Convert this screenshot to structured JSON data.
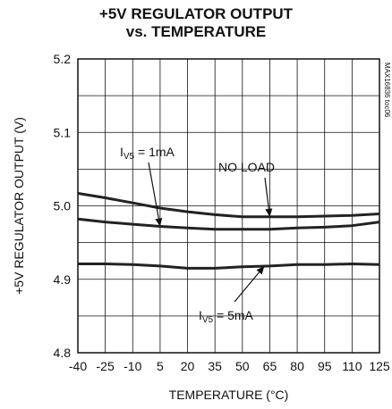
{
  "chart_data": {
    "type": "line",
    "title_line1": "+5V REGULATOR OUTPUT",
    "title_line2": "vs. TEMPERATURE",
    "xlabel": "TEMPERATURE (°C)",
    "ylabel": "+5V REGULATOR OUTPUT (V)",
    "xlim": [
      -40,
      125
    ],
    "ylim": [
      4.8,
      5.2
    ],
    "x_ticks": [
      -40,
      -25,
      -10,
      5,
      20,
      35,
      50,
      65,
      80,
      95,
      110,
      125
    ],
    "y_ticks": [
      "4.8",
      "4.9",
      "5.0",
      "5.1",
      "5.2"
    ],
    "grid": true,
    "watermark": "MAX16836 toc06",
    "series": [
      {
        "name": "NO LOAD",
        "x": [
          -40,
          -25,
          -10,
          5,
          20,
          35,
          50,
          65,
          80,
          95,
          110,
          125
        ],
        "y": [
          5.017,
          5.011,
          5.004,
          4.997,
          4.992,
          4.988,
          4.985,
          4.985,
          4.985,
          4.986,
          4.987,
          4.989
        ]
      },
      {
        "name": "",
        "x": [
          -40,
          -25,
          -10,
          5,
          20,
          35,
          50,
          65,
          80,
          95,
          110,
          125
        ],
        "y": [
          4.982,
          4.978,
          4.975,
          4.972,
          4.97,
          4.968,
          4.968,
          4.968,
          4.97,
          4.971,
          4.973,
          4.978
        ]
      },
      {
        "name": "",
        "x": [
          -40,
          -25,
          -10,
          5,
          20,
          35,
          50,
          65,
          80,
          95,
          110,
          125
        ],
        "y": [
          4.921,
          4.921,
          4.92,
          4.918,
          4.915,
          4.915,
          4.917,
          4.918,
          4.92,
          4.92,
          4.921,
          4.92
        ]
      }
    ],
    "annotations": [
      {
        "main": "I",
        "sub": "V5",
        "suffix": " = 1mA",
        "points_to": {
          "x": 5,
          "y": 4.972
        }
      },
      {
        "main": "NO LOAD",
        "sub": "",
        "suffix": "",
        "points_to": {
          "x": 65,
          "y": 4.985
        }
      },
      {
        "main": "I",
        "sub": "V5",
        "suffix": " = 5mA",
        "points_to": {
          "x": 62,
          "y": 4.918
        }
      }
    ]
  }
}
